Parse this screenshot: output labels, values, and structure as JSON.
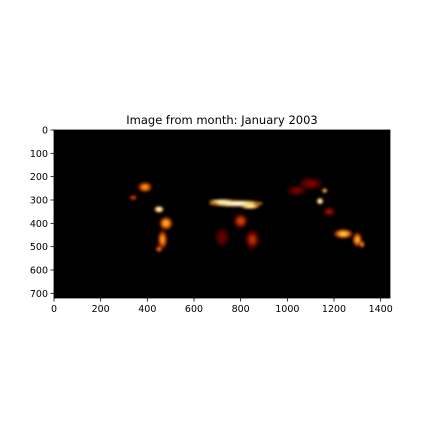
{
  "chart_data": {
    "type": "heatmap",
    "title": "Image from month: January 2003",
    "xlabel": "",
    "ylabel": "",
    "x_ticks": [
      0,
      200,
      400,
      600,
      800,
      1000,
      1200,
      1400
    ],
    "y_ticks": [
      0,
      100,
      200,
      300,
      400,
      500,
      600,
      700
    ],
    "xlim": [
      0,
      1440
    ],
    "ylim": [
      720,
      0
    ],
    "image_size": {
      "columns": 1440,
      "rows": 720
    },
    "colormap": "afmhot",
    "background_color": "#000000",
    "hotspots": [
      {
        "x": 780,
        "y": 315,
        "rx": 115,
        "ry": 14,
        "intensity": 1.0
      },
      {
        "x": 720,
        "y": 305,
        "rx": 55,
        "ry": 8,
        "intensity": 1.0
      },
      {
        "x": 840,
        "y": 328,
        "rx": 40,
        "ry": 10,
        "intensity": 0.9
      },
      {
        "x": 450,
        "y": 340,
        "rx": 20,
        "ry": 14,
        "intensity": 0.95
      },
      {
        "x": 1140,
        "y": 305,
        "rx": 14,
        "ry": 14,
        "intensity": 0.95
      },
      {
        "x": 1160,
        "y": 260,
        "rx": 12,
        "ry": 10,
        "intensity": 0.7
      },
      {
        "x": 390,
        "y": 245,
        "rx": 30,
        "ry": 22,
        "intensity": 0.55
      },
      {
        "x": 340,
        "y": 290,
        "rx": 18,
        "ry": 12,
        "intensity": 0.4
      },
      {
        "x": 480,
        "y": 400,
        "rx": 28,
        "ry": 28,
        "intensity": 0.6
      },
      {
        "x": 465,
        "y": 470,
        "rx": 20,
        "ry": 40,
        "intensity": 0.55
      },
      {
        "x": 450,
        "y": 510,
        "rx": 15,
        "ry": 14,
        "intensity": 0.5
      },
      {
        "x": 1240,
        "y": 445,
        "rx": 40,
        "ry": 20,
        "intensity": 0.65
      },
      {
        "x": 1300,
        "y": 470,
        "rx": 20,
        "ry": 30,
        "intensity": 0.6
      },
      {
        "x": 1320,
        "y": 490,
        "rx": 12,
        "ry": 15,
        "intensity": 0.55
      },
      {
        "x": 800,
        "y": 390,
        "rx": 30,
        "ry": 30,
        "intensity": 0.4
      },
      {
        "x": 850,
        "y": 470,
        "rx": 30,
        "ry": 40,
        "intensity": 0.35
      },
      {
        "x": 1040,
        "y": 260,
        "rx": 40,
        "ry": 20,
        "intensity": 0.25
      },
      {
        "x": 1100,
        "y": 230,
        "rx": 50,
        "ry": 25,
        "intensity": 0.25
      },
      {
        "x": 1180,
        "y": 350,
        "rx": 25,
        "ry": 20,
        "intensity": 0.3
      },
      {
        "x": 720,
        "y": 460,
        "rx": 30,
        "ry": 40,
        "intensity": 0.2
      }
    ]
  }
}
